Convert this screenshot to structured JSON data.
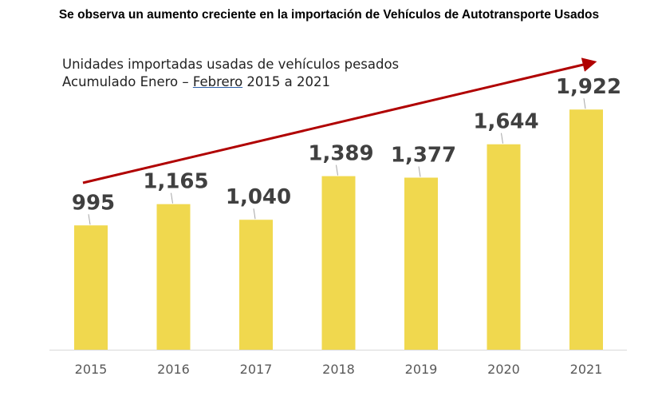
{
  "header": {
    "title": "Se observa un aumento creciente en la importación de Vehículos de Autotransporte Usados"
  },
  "subtitle": {
    "line1": "Unidades importadas usadas de vehículos pesados",
    "line2_prefix": "Acumulado Enero – ",
    "line2_underlined": "Febrero",
    "line2_suffix": " 2015 a 2021"
  },
  "colors": {
    "bar": "#F0D84E",
    "arrow": "#B00000",
    "leader": "#A6A6A6",
    "axis": "#D9D9D9"
  },
  "chart_data": {
    "type": "bar",
    "title": "Unidades importadas usadas de vehículos pesados",
    "categories": [
      "2015",
      "2016",
      "2017",
      "2018",
      "2019",
      "2020",
      "2021"
    ],
    "values": [
      995,
      1165,
      1040,
      1389,
      1377,
      1644,
      1922
    ],
    "value_labels": [
      "995",
      "1,165",
      "1,040",
      "1,389",
      "1,377",
      "1,644",
      "1,922"
    ],
    "xlabel": "",
    "ylabel": "",
    "ylim": [
      0,
      2150
    ],
    "grid": false,
    "annotations": [
      "trend-arrow-up"
    ]
  }
}
